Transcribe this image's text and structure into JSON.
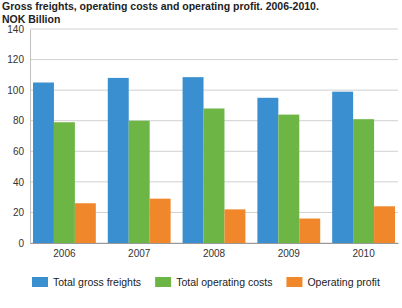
{
  "chart_data": {
    "type": "bar",
    "title": "Gross freights, operating costs and operating profit. 2006-2010.",
    "subtitle": "NOK Billion",
    "categories": [
      "2006",
      "2007",
      "2008",
      "2009",
      "2010"
    ],
    "series": [
      {
        "name": "Total gross freights",
        "color": "#3a8fd0",
        "values": [
          105,
          108,
          108.5,
          95,
          99
        ]
      },
      {
        "name": "Total operating costs",
        "color": "#6db544",
        "values": [
          79,
          80,
          88,
          84,
          81
        ]
      },
      {
        "name": "Operating profit",
        "color": "#f0872a",
        "values": [
          26,
          29,
          22,
          16,
          24
        ]
      }
    ],
    "ylim": [
      0,
      140
    ],
    "yticks": [
      0,
      20,
      40,
      60,
      80,
      100,
      120,
      140
    ],
    "grid": true,
    "legend": "bottom"
  }
}
